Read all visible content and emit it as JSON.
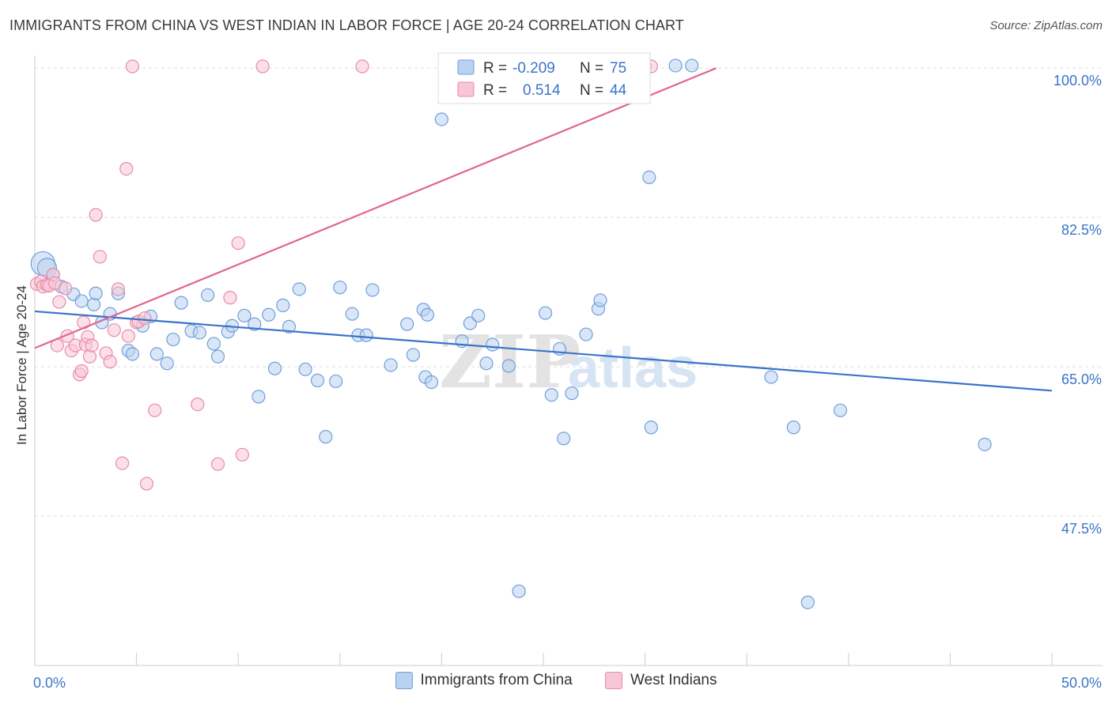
{
  "header": {
    "title": "IMMIGRANTS FROM CHINA VS WEST INDIAN IN LABOR FORCE | AGE 20-24 CORRELATION CHART",
    "source": "Source: ZipAtlas.com"
  },
  "watermark": {
    "zip": "ZIP",
    "atlas": "atlas"
  },
  "colors": {
    "blue_fill": "#b9d2f1",
    "blue_stroke": "#6f9fdc",
    "blue_line": "#3a74c8",
    "pink_fill": "#f8c6d6",
    "pink_stroke": "#e98aa9",
    "pink_line": "#e0668f",
    "tick_text": "#3b74c9",
    "grid": "#dddddd"
  },
  "legend_top": {
    "rows": [
      {
        "r_label": "R =",
        "r_value": "-0.209",
        "n_label": "N =",
        "n_value": "75"
      },
      {
        "r_label": "R =",
        "r_value": "0.514",
        "n_label": "N =",
        "n_value": "44"
      }
    ]
  },
  "legend_bottom": {
    "items": [
      {
        "label": "Immigrants from China"
      },
      {
        "label": "West Indians"
      }
    ]
  },
  "chart_data": {
    "type": "scatter",
    "title": "IMMIGRANTS FROM CHINA VS WEST INDIAN IN LABOR FORCE | AGE 20-24 CORRELATION CHART",
    "xlabel": "",
    "ylabel": "In Labor Force | Age 20-24",
    "xlim": [
      0,
      50
    ],
    "ylim": [
      30,
      101.5
    ],
    "x_tick_labels": [
      {
        "value": 0,
        "label": "0.0%"
      },
      {
        "value": 50,
        "label": "50.0%"
      }
    ],
    "y_tick_labels": [
      {
        "value": 100,
        "label": "100.0%"
      },
      {
        "value": 82.5,
        "label": "82.5%"
      },
      {
        "value": 65,
        "label": "65.0%"
      },
      {
        "value": 47.5,
        "label": "47.5%"
      }
    ],
    "grid": true,
    "legend_position": "top-center",
    "series": [
      {
        "name": "Immigrants from China",
        "color": "#6f9fdc",
        "r": -0.209,
        "n": 75,
        "trend": [
          [
            0,
            71.5
          ],
          [
            50,
            62.2
          ]
        ],
        "points": [
          [
            0.4,
            77.1
          ],
          [
            0.6,
            76.6
          ],
          [
            0.9,
            75.8
          ],
          [
            1.3,
            74.4
          ],
          [
            1.9,
            73.5
          ],
          [
            2.3,
            72.7
          ],
          [
            2.9,
            72.3
          ],
          [
            3.0,
            73.6
          ],
          [
            3.3,
            70.2
          ],
          [
            3.7,
            71.2
          ],
          [
            4.1,
            73.6
          ],
          [
            4.6,
            66.9
          ],
          [
            4.8,
            66.5
          ],
          [
            5.3,
            69.8
          ],
          [
            5.7,
            70.9
          ],
          [
            6.0,
            66.5
          ],
          [
            6.5,
            65.4
          ],
          [
            6.8,
            68.2
          ],
          [
            7.2,
            72.5
          ],
          [
            7.7,
            69.2
          ],
          [
            8.1,
            69.0
          ],
          [
            8.5,
            73.4
          ],
          [
            8.8,
            67.7
          ],
          [
            9.0,
            66.2
          ],
          [
            9.5,
            69.1
          ],
          [
            9.7,
            69.8
          ],
          [
            10.3,
            71.0
          ],
          [
            10.8,
            70.0
          ],
          [
            11.0,
            61.5
          ],
          [
            11.5,
            71.1
          ],
          [
            11.8,
            64.8
          ],
          [
            12.2,
            72.2
          ],
          [
            12.5,
            69.7
          ],
          [
            13.0,
            74.1
          ],
          [
            13.3,
            64.7
          ],
          [
            13.9,
            63.4
          ],
          [
            14.3,
            56.8
          ],
          [
            14.8,
            63.3
          ],
          [
            15.0,
            74.3
          ],
          [
            15.6,
            71.2
          ],
          [
            15.9,
            68.7
          ],
          [
            16.3,
            68.7
          ],
          [
            16.6,
            74.0
          ],
          [
            17.5,
            65.2
          ],
          [
            18.3,
            70.0
          ],
          [
            18.6,
            66.4
          ],
          [
            19.1,
            71.7
          ],
          [
            19.2,
            63.8
          ],
          [
            19.5,
            63.2
          ],
          [
            19.3,
            71.1
          ],
          [
            20.0,
            94.0
          ],
          [
            21.0,
            68.0
          ],
          [
            21.4,
            70.1
          ],
          [
            21.8,
            71.0
          ],
          [
            22.2,
            65.4
          ],
          [
            22.5,
            67.6
          ],
          [
            23.3,
            65.1
          ],
          [
            23.8,
            38.7
          ],
          [
            25.1,
            71.3
          ],
          [
            25.4,
            61.7
          ],
          [
            25.8,
            67.1
          ],
          [
            26.0,
            56.6
          ],
          [
            26.4,
            61.9
          ],
          [
            27.1,
            68.8
          ],
          [
            27.7,
            71.8
          ],
          [
            27.8,
            72.8
          ],
          [
            30.2,
            87.2
          ],
          [
            30.3,
            57.9
          ],
          [
            31.5,
            100.3
          ],
          [
            32.3,
            100.3
          ],
          [
            36.2,
            63.8
          ],
          [
            37.3,
            57.9
          ],
          [
            38.0,
            37.4
          ],
          [
            39.6,
            59.9
          ],
          [
            46.7,
            55.9
          ]
        ]
      },
      {
        "name": "West Indians",
        "color": "#e98aa9",
        "r": 0.514,
        "n": 44,
        "trend": [
          [
            0,
            67.2
          ],
          [
            33.5,
            100.0
          ]
        ],
        "points": [
          [
            0.1,
            74.7
          ],
          [
            0.3,
            75.0
          ],
          [
            0.4,
            74.4
          ],
          [
            0.6,
            74.6
          ],
          [
            0.7,
            74.5
          ],
          [
            0.9,
            75.8
          ],
          [
            1.0,
            74.8
          ],
          [
            1.1,
            67.5
          ],
          [
            1.2,
            72.6
          ],
          [
            1.5,
            74.2
          ],
          [
            1.6,
            68.6
          ],
          [
            1.8,
            66.9
          ],
          [
            2.0,
            67.5
          ],
          [
            2.2,
            64.1
          ],
          [
            2.3,
            64.5
          ],
          [
            2.4,
            70.2
          ],
          [
            2.5,
            67.6
          ],
          [
            2.6,
            68.5
          ],
          [
            2.7,
            66.2
          ],
          [
            2.8,
            67.5
          ],
          [
            3.0,
            82.8
          ],
          [
            3.2,
            77.9
          ],
          [
            3.5,
            66.6
          ],
          [
            3.7,
            65.6
          ],
          [
            3.9,
            69.3
          ],
          [
            4.1,
            74.1
          ],
          [
            4.3,
            53.7
          ],
          [
            4.5,
            88.2
          ],
          [
            4.6,
            68.6
          ],
          [
            4.8,
            100.2
          ],
          [
            5.0,
            70.2
          ],
          [
            5.1,
            70.3
          ],
          [
            5.4,
            70.7
          ],
          [
            5.5,
            51.3
          ],
          [
            5.9,
            59.9
          ],
          [
            8.0,
            60.6
          ],
          [
            9.0,
            53.6
          ],
          [
            9.6,
            73.1
          ],
          [
            10.0,
            79.5
          ],
          [
            10.2,
            54.7
          ],
          [
            11.2,
            100.2
          ],
          [
            16.1,
            100.2
          ],
          [
            30.0,
            100.2
          ],
          [
            30.3,
            100.2
          ]
        ]
      }
    ]
  }
}
